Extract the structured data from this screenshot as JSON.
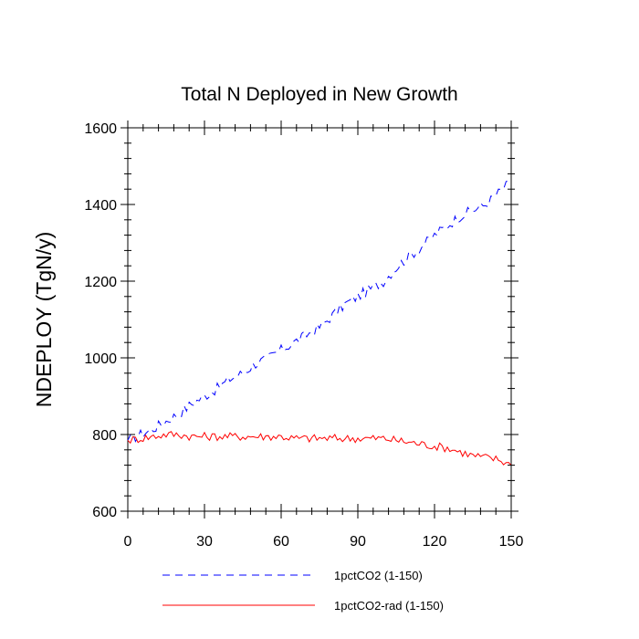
{
  "chart_data": {
    "type": "line",
    "title": "Total N Deployed in New Growth",
    "xlabel": "",
    "ylabel": "NDEPLOY  (TgN/y)",
    "xlim": [
      0,
      150
    ],
    "ylim": [
      600,
      1600
    ],
    "xticks": [
      0,
      30,
      60,
      90,
      120,
      150
    ],
    "yticks": [
      600,
      800,
      1000,
      1200,
      1400,
      1600
    ],
    "grid": false,
    "legend_position": "bottom",
    "series": [
      {
        "name": "1pctCO2 (1-150)",
        "color": "#0000ff",
        "style": "dashed",
        "x": [
          0,
          5,
          10,
          15,
          20,
          25,
          30,
          35,
          40,
          45,
          50,
          55,
          60,
          65,
          70,
          75,
          80,
          85,
          90,
          95,
          100,
          105,
          110,
          115,
          120,
          125,
          130,
          135,
          140,
          145,
          150
        ],
        "values": [
          785,
          800,
          815,
          835,
          855,
          880,
          900,
          920,
          945,
          960,
          985,
          1000,
          1020,
          1040,
          1060,
          1080,
          1110,
          1140,
          1160,
          1180,
          1200,
          1235,
          1265,
          1290,
          1320,
          1345,
          1370,
          1385,
          1400,
          1430,
          1460
        ]
      },
      {
        "name": "1pctCO2-rad (1-150)",
        "color": "#ff0000",
        "style": "solid",
        "x": [
          0,
          5,
          10,
          15,
          20,
          25,
          30,
          35,
          40,
          45,
          50,
          55,
          60,
          65,
          70,
          75,
          80,
          85,
          90,
          95,
          100,
          105,
          110,
          115,
          120,
          125,
          130,
          135,
          140,
          145,
          150
        ],
        "values": [
          785,
          790,
          795,
          800,
          800,
          795,
          795,
          795,
          795,
          795,
          795,
          795,
          795,
          790,
          790,
          790,
          790,
          790,
          790,
          790,
          790,
          785,
          780,
          775,
          770,
          765,
          755,
          745,
          740,
          735,
          720
        ]
      }
    ]
  }
}
